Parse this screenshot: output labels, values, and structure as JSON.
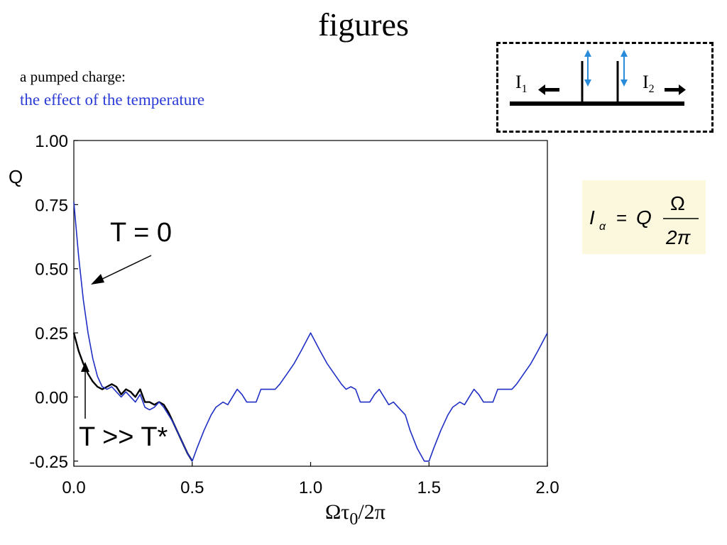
{
  "slide": {
    "title": "figures",
    "subtitle1": "a pumped charge:",
    "subtitle2": "the effect of the temperature",
    "subtitle2_color": "#2a3bd6"
  },
  "inset": {
    "left_label": "I",
    "left_sub": "1",
    "right_label": "I",
    "right_sub": "2",
    "arrow_color": "#2a8bd8"
  },
  "formula": {
    "lhs": "I",
    "lhs_sub": "α",
    "equals": "=",
    "q": "Q",
    "numerator": "Ω",
    "denominator": "2π"
  },
  "chart_data": {
    "type": "line",
    "xlabel_main": "Ωτ",
    "xlabel_sub": "0",
    "xlabel_tail": "/2π",
    "ylabel": "Q",
    "xlim": [
      0,
      2
    ],
    "ylim": [
      -0.27,
      1.0
    ],
    "xticks": [
      "0.0",
      "0.5",
      "1.0",
      "1.5",
      "2.0"
    ],
    "yticks": [
      "1.00",
      "0.75",
      "0.50",
      "0.25",
      "0.00",
      "-0.25"
    ],
    "annotations": [
      {
        "text": "T = 0",
        "series": "T = 0"
      },
      {
        "text": "T >> T*",
        "series": "T >> T*"
      }
    ],
    "series": [
      {
        "name": "T = 0",
        "color": "#1f2fc4",
        "x": [
          0.0,
          0.02,
          0.04,
          0.06,
          0.08,
          0.1,
          0.12,
          0.14,
          0.16,
          0.18,
          0.2,
          0.22,
          0.24,
          0.26,
          0.28,
          0.3,
          0.32,
          0.34,
          0.36,
          0.38,
          0.4,
          0.42,
          0.44,
          0.46,
          0.48,
          0.5,
          0.52,
          0.55,
          0.58,
          0.6,
          0.63,
          0.65,
          0.67,
          0.69,
          0.71,
          0.73,
          0.75,
          0.77,
          0.79,
          0.81,
          0.83,
          0.85,
          0.87,
          0.9,
          0.93,
          0.96,
          1.0,
          1.04,
          1.07,
          1.1,
          1.13,
          1.15,
          1.17,
          1.19,
          1.21,
          1.23,
          1.25,
          1.27,
          1.29,
          1.31,
          1.33,
          1.35,
          1.37,
          1.4,
          1.42,
          1.45,
          1.48,
          1.5,
          1.52,
          1.55,
          1.58,
          1.6,
          1.63,
          1.65,
          1.67,
          1.69,
          1.71,
          1.73,
          1.75,
          1.77,
          1.79,
          1.81,
          1.83,
          1.85,
          1.87,
          1.9,
          1.93,
          1.96,
          2.0
        ],
        "y": [
          0.76,
          0.55,
          0.38,
          0.25,
          0.15,
          0.08,
          0.04,
          0.03,
          0.04,
          0.02,
          0.0,
          0.02,
          0.0,
          -0.02,
          0.01,
          -0.04,
          -0.05,
          -0.04,
          -0.02,
          -0.04,
          -0.07,
          -0.1,
          -0.14,
          -0.18,
          -0.22,
          -0.25,
          -0.2,
          -0.13,
          -0.07,
          -0.04,
          -0.02,
          -0.03,
          0.0,
          0.03,
          0.01,
          -0.02,
          -0.02,
          -0.02,
          0.03,
          0.03,
          0.03,
          0.03,
          0.05,
          0.09,
          0.13,
          0.18,
          0.25,
          0.18,
          0.13,
          0.09,
          0.05,
          0.03,
          0.04,
          0.03,
          -0.02,
          -0.02,
          -0.02,
          0.01,
          0.03,
          0.0,
          -0.03,
          -0.02,
          -0.04,
          -0.07,
          -0.13,
          -0.2,
          -0.25,
          -0.25,
          -0.2,
          -0.13,
          -0.07,
          -0.04,
          -0.02,
          -0.03,
          0.0,
          0.03,
          0.01,
          -0.02,
          -0.02,
          -0.02,
          0.03,
          0.03,
          0.03,
          0.03,
          0.05,
          0.09,
          0.13,
          0.18,
          0.25
        ]
      },
      {
        "name": "T >> T*",
        "color": "#000000",
        "x": [
          0.0,
          0.02,
          0.04,
          0.06,
          0.08,
          0.1,
          0.12,
          0.14,
          0.16,
          0.18,
          0.2,
          0.22,
          0.24,
          0.26,
          0.28,
          0.3,
          0.32,
          0.34,
          0.36,
          0.38,
          0.4,
          0.42,
          0.44,
          0.46,
          0.48,
          0.5
        ],
        "y": [
          0.25,
          0.18,
          0.13,
          0.09,
          0.06,
          0.04,
          0.03,
          0.04,
          0.05,
          0.04,
          0.01,
          0.03,
          0.02,
          0.0,
          0.03,
          -0.02,
          -0.02,
          -0.03,
          -0.02,
          -0.03,
          -0.06,
          -0.1,
          -0.14,
          -0.18,
          -0.22,
          -0.25
        ]
      }
    ]
  }
}
